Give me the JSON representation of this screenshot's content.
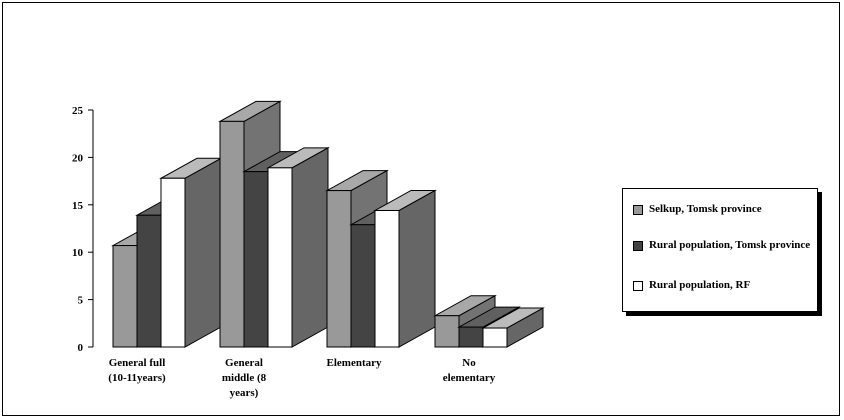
{
  "chart_data": {
    "type": "bar",
    "categories": [
      [
        "General full",
        "(10-11years)"
      ],
      [
        "General",
        "middle (8",
        "years)"
      ],
      [
        "Elementary"
      ],
      [
        "No",
        "elementary"
      ]
    ],
    "series": [
      {
        "name": "Selkup, Tomsk province",
        "values": [
          10.7,
          23.8,
          16.5,
          3.3
        ],
        "color": "#999999"
      },
      {
        "name": "Rural population, Tomsk province",
        "values": [
          13.9,
          18.5,
          12.9,
          2.1
        ],
        "color": "#444444"
      },
      {
        "name": "Rural population, RF",
        "values": [
          17.8,
          18.9,
          14.4,
          2.0
        ],
        "color": "#ffffff"
      }
    ],
    "ylim": [
      0,
      25
    ],
    "yticks": [
      0,
      5,
      10,
      15,
      20,
      25
    ],
    "legend_position": "right",
    "grid": false,
    "three_d": true
  }
}
